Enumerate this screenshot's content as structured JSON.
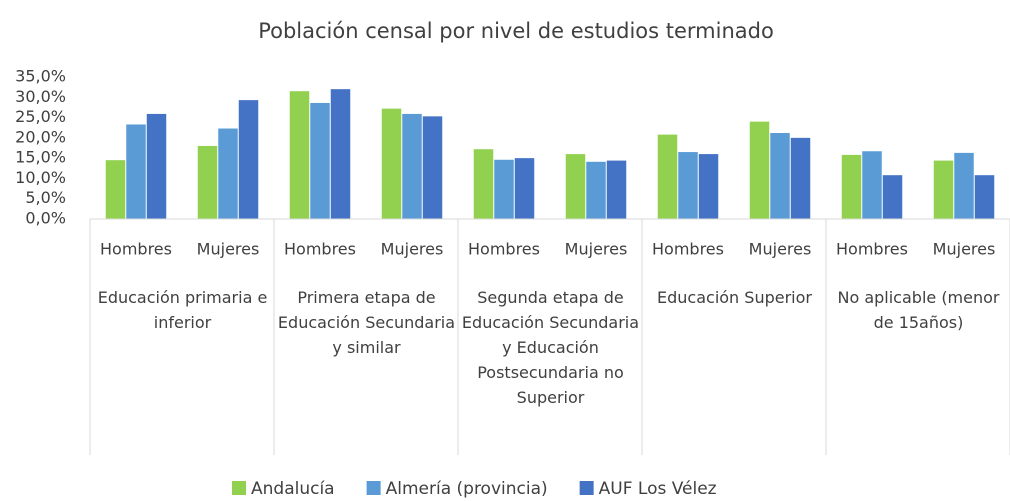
{
  "chart_data": {
    "type": "bar",
    "title": "Población censal por nivel de estudios terminado",
    "categories": [
      "Hombres",
      "Mujeres",
      "Hombres",
      "Mujeres",
      "Hombres",
      "Mujeres",
      "Hombres",
      "Mujeres",
      "Hombres",
      "Mujeres"
    ],
    "groups": [
      "Educación primaria e inferior",
      "Primera etapa de Educación Secundaria y similar",
      "Segunda etapa de Educación Secundaria y Educación Postsecundaria no Superior",
      "Educación Superior",
      "No aplicable (menor de 15años)"
    ],
    "series": [
      {
        "name": "Andalucía",
        "color": "#92d050",
        "values": [
          14.5,
          18.0,
          31.5,
          27.2,
          17.2,
          16.0,
          20.8,
          24.0,
          15.8,
          14.4
        ]
      },
      {
        "name": "Almería (provincia)",
        "color": "#5b9bd5",
        "values": [
          23.3,
          22.3,
          28.6,
          25.9,
          14.6,
          14.1,
          16.5,
          21.2,
          16.7,
          16.3
        ]
      },
      {
        "name": "AUF Los Vélez",
        "color": "#4472c4",
        "values": [
          25.9,
          29.3,
          32.0,
          25.3,
          15.0,
          14.4,
          16.0,
          20.0,
          10.8,
          10.8
        ]
      }
    ],
    "ylim": [
      0,
      35
    ],
    "yticks": [
      {
        "value": 0,
        "label": "0,0%"
      },
      {
        "value": 5,
        "label": "5,0%"
      },
      {
        "value": 10,
        "label": "10,0%"
      },
      {
        "value": 15,
        "label": "15,0%"
      },
      {
        "value": 20,
        "label": "20,0%"
      },
      {
        "value": 25,
        "label": "25,0%"
      },
      {
        "value": 30,
        "label": "30,0%"
      },
      {
        "value": 35,
        "label": "35,0%"
      }
    ],
    "legend": "bottom"
  }
}
